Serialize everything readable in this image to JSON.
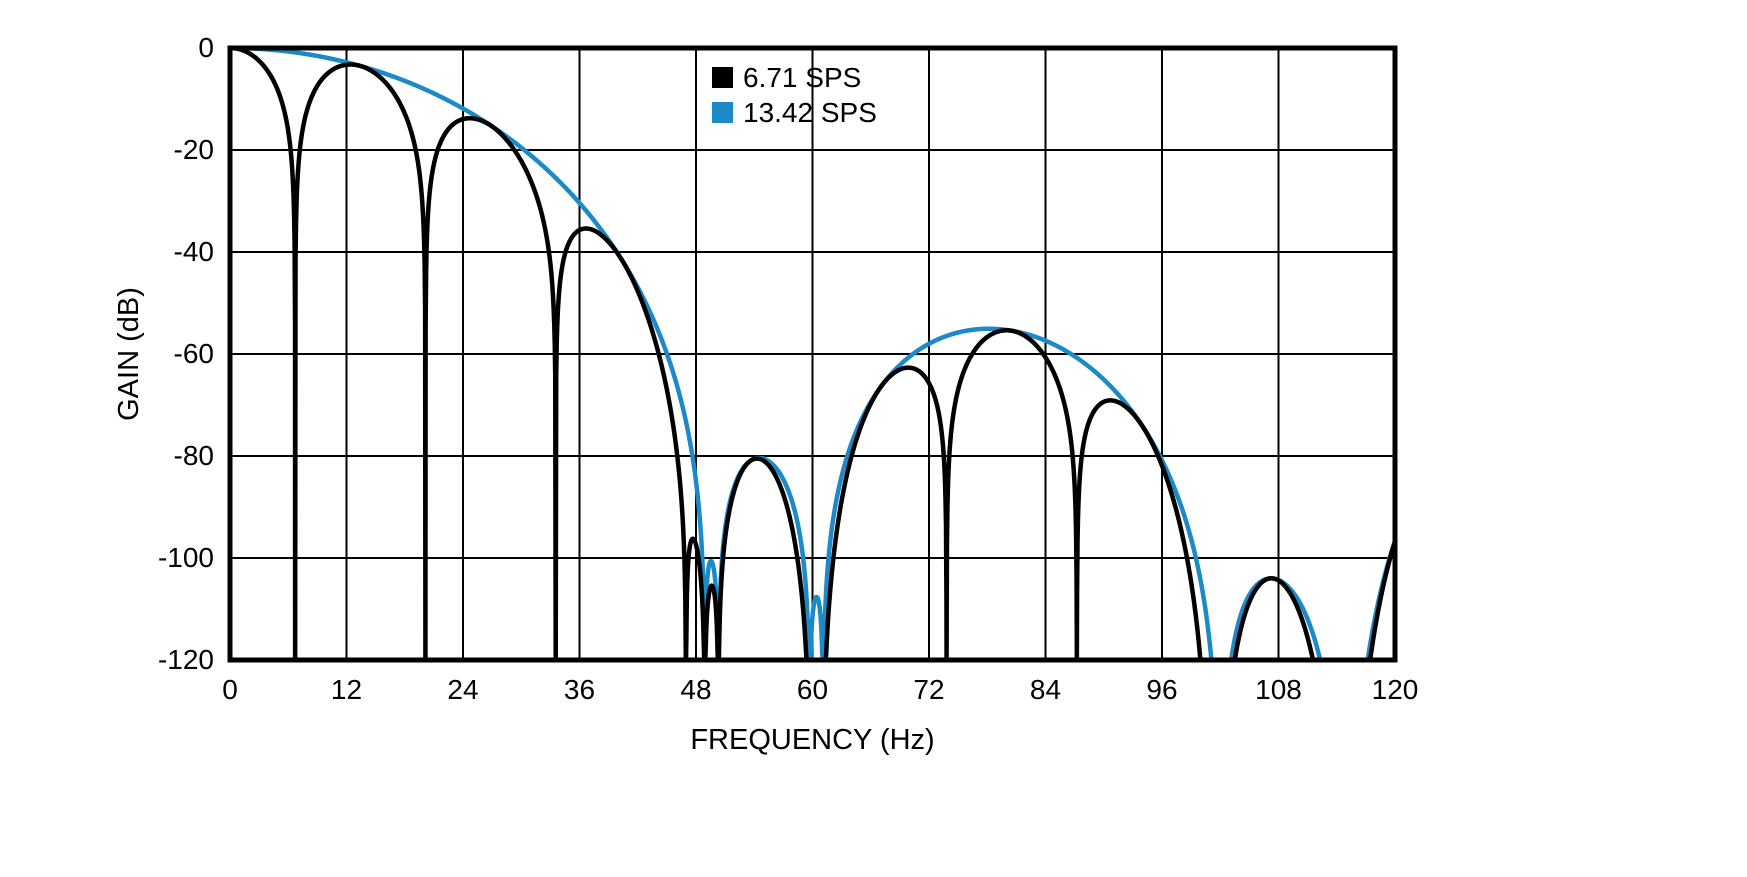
{
  "chart_data": {
    "type": "line",
    "title": "",
    "xlabel": "FREQUENCY (Hz)",
    "ylabel": "GAIN (dB)",
    "xlim": [
      0,
      120
    ],
    "ylim": [
      -120,
      0
    ],
    "grid": true,
    "x_ticks": [
      "0",
      "12",
      "24",
      "36",
      "48",
      "60",
      "72",
      "84",
      "96",
      "108",
      "120"
    ],
    "y_ticks": [
      "0",
      "-20",
      "-40",
      "-60",
      "-80",
      "-100",
      "-120"
    ],
    "colors": {
      "background": "#ffffff",
      "axis": "#000000",
      "grid": "#000000",
      "series_black": "#000000",
      "series_blue": "#1b8ac6"
    },
    "legend": {
      "position": "top-inside",
      "entries": [
        {
          "label": "6.71 SPS",
          "color": "#000000"
        },
        {
          "label": "13.42 SPS",
          "color": "#1b8ac6"
        }
      ]
    },
    "series": [
      {
        "name": "13.42 SPS",
        "color": "#1b8ac6",
        "stroke_width": 4.5,
        "model": {
          "type": "cosine_zero_product",
          "zeros": [
            {
              "f": 48.9,
              "m": 1
            },
            {
              "f": 50.3,
              "m": 1
            },
            {
              "f": 59.7,
              "m": 1
            },
            {
              "f": 61.1,
              "m": 1
            },
            {
              "f": 102.0,
              "m": 2
            },
            {
              "f": 115.0,
              "m": 3
            }
          ]
        },
        "nulls_hz": [
          48.9,
          50.3,
          59.7,
          61.1,
          102,
          115
        ],
        "readings_f_db": [
          [
            0,
            0
          ],
          [
            12,
            -3
          ],
          [
            24,
            -11
          ],
          [
            30,
            -20
          ],
          [
            36,
            -29
          ],
          [
            40,
            -40
          ],
          [
            44,
            -53
          ],
          [
            49.6,
            -97
          ],
          [
            55,
            -81
          ],
          [
            60.4,
            -105
          ],
          [
            78,
            -55
          ],
          [
            94,
            -70
          ],
          [
            108,
            -105
          ],
          [
            120,
            -95
          ]
        ]
      },
      {
        "name": "6.71 SPS",
        "color": "#000000",
        "stroke_width": 4.5,
        "model": {
          "type": "cosine_zero_product",
          "zeros": [
            {
              "f": 6.71,
              "m": 1
            },
            {
              "f": 48.9,
              "m": 1
            },
            {
              "f": 50.3,
              "m": 1
            },
            {
              "f": 59.7,
              "m": 1
            },
            {
              "f": 61.1,
              "m": 1
            },
            {
              "f": 102.0,
              "m": 2
            },
            {
              "f": 115.0,
              "m": 3
            }
          ]
        },
        "nulls_hz": [
          6.71,
          20.13,
          33.55,
          46.97,
          48.9,
          50.3,
          59.7,
          60.39,
          61.1,
          73.81,
          87.23,
          100.65,
          102,
          114.07,
          115
        ],
        "lobe_peaks_f_db": [
          [
            13.42,
            -3
          ],
          [
            26.84,
            -13
          ],
          [
            40.26,
            -41
          ],
          [
            53.68,
            -81
          ],
          [
            67.1,
            -61
          ],
          [
            80.52,
            -55
          ],
          [
            93.94,
            -70
          ],
          [
            107.36,
            -105
          ]
        ]
      }
    ]
  }
}
